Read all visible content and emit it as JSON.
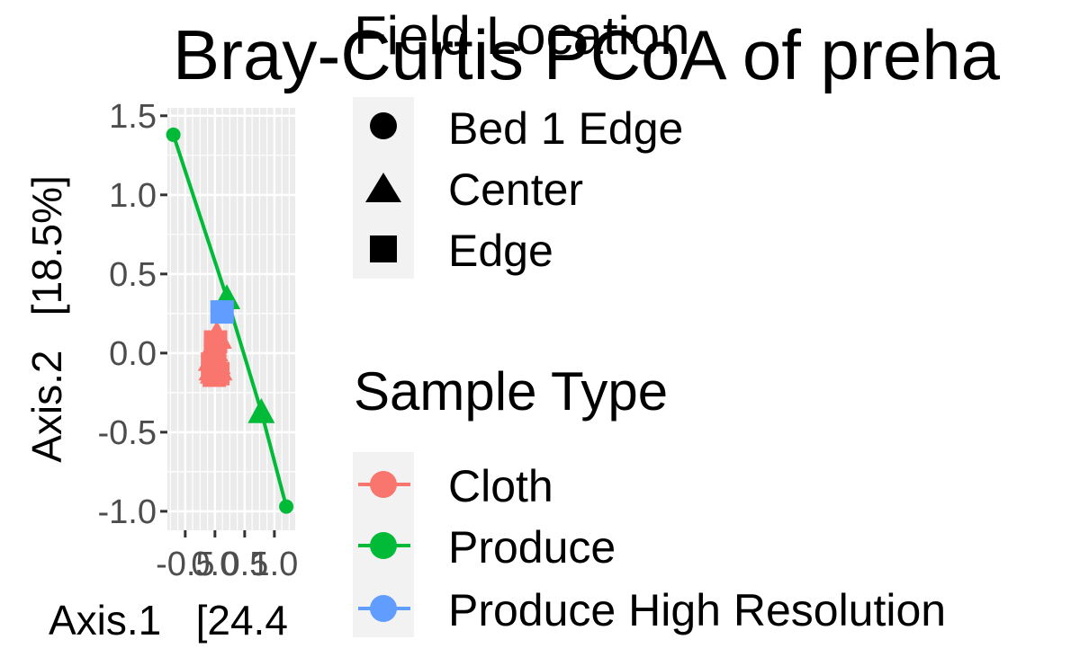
{
  "chart_data": {
    "type": "scatter",
    "title": "Bray-Curtis PCoA of preha",
    "xlabel": "Axis.1   [24.4",
    "ylabel": "Axis.2   [18.5%]",
    "xlim": [
      -0.8,
      1.35
    ],
    "ylim": [
      -1.12,
      1.55
    ],
    "x_tick_labels": [
      "-0.5",
      "0.0",
      "0.5",
      "1.0"
    ],
    "x_ticks": [
      -0.5,
      0.0,
      0.5,
      1.0
    ],
    "y_tick_labels": [
      "1.5",
      "1.0",
      "0.5",
      "0.0",
      "-0.5",
      "-1.0"
    ],
    "y_ticks": [
      1.5,
      1.0,
      0.5,
      0.0,
      -0.5,
      -1.0
    ],
    "grid": true,
    "legend_position": "right",
    "shape_legend": {
      "title": "Field Location",
      "entries": [
        {
          "label": "Bed 1 Edge",
          "shape": "circle"
        },
        {
          "label": "Center",
          "shape": "triangle"
        },
        {
          "label": "Edge",
          "shape": "square"
        }
      ]
    },
    "color_legend": {
      "title": "Sample Type",
      "entries": [
        {
          "label": "Cloth",
          "color": "#F8766D"
        },
        {
          "label": "Produce",
          "color": "#00BA38"
        },
        {
          "label": "Produce High Resolution",
          "color": "#619CFF"
        }
      ]
    },
    "series": [
      {
        "name": "Cloth",
        "color": "#F8766D",
        "points": [
          {
            "x": -0.02,
            "y": 0.05,
            "shape": "triangle"
          },
          {
            "x": 0.0,
            "y": 0.02,
            "shape": "triangle"
          },
          {
            "x": 0.04,
            "y": -0.06,
            "shape": "triangle"
          },
          {
            "x": -0.05,
            "y": -0.1,
            "shape": "triangle"
          },
          {
            "x": -0.03,
            "y": -0.12,
            "shape": "triangle"
          },
          {
            "x": 0.06,
            "y": 0.1,
            "shape": "triangle"
          },
          {
            "x": 0.02,
            "y": -0.02,
            "shape": "triangle"
          },
          {
            "x": -0.06,
            "y": -0.04,
            "shape": "triangle"
          },
          {
            "x": 0.07,
            "y": -0.1,
            "shape": "triangle"
          },
          {
            "x": 0.03,
            "y": 0.12,
            "shape": "triangle"
          },
          {
            "x": -0.01,
            "y": -0.14,
            "shape": "square"
          },
          {
            "x": 0.05,
            "y": -0.13,
            "shape": "square"
          },
          {
            "x": -0.04,
            "y": -0.07,
            "shape": "square"
          },
          {
            "x": 0.01,
            "y": 0.07,
            "shape": "square"
          }
        ]
      },
      {
        "name": "Produce",
        "color": "#00BA38",
        "points": [
          {
            "x": -0.7,
            "y": 1.38,
            "shape": "circle"
          },
          {
            "x": 0.2,
            "y": 0.35,
            "shape": "triangle"
          },
          {
            "x": 0.78,
            "y": -0.37,
            "shape": "triangle"
          },
          {
            "x": 1.2,
            "y": -0.97,
            "shape": "circle"
          }
        ]
      },
      {
        "name": "Produce High Resolution",
        "color": "#619CFF",
        "points": [
          {
            "x": 0.12,
            "y": 0.26,
            "shape": "square"
          }
        ]
      }
    ]
  }
}
